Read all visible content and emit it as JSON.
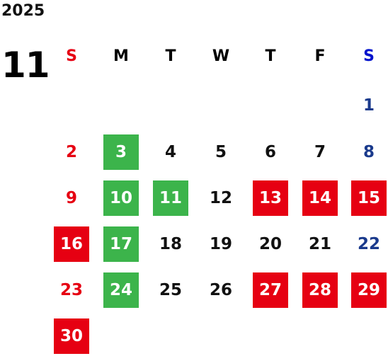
{
  "year": "2025",
  "month": "11",
  "weekdays": [
    "S",
    "M",
    "T",
    "W",
    "T",
    "F",
    "S"
  ],
  "colors": {
    "sunday": "#e60012",
    "saturday": "#1a3a8c",
    "weekday": "#111111",
    "holiday_fill": "#e60012",
    "event_fill": "#3cb44b",
    "on_fill_text": "#ffffff"
  },
  "legend_meaning_not_shown": true,
  "days": [
    {
      "day": "1",
      "col": 6,
      "row": 0,
      "mark": "none"
    },
    {
      "day": "2",
      "col": 0,
      "row": 1,
      "mark": "none"
    },
    {
      "day": "3",
      "col": 1,
      "row": 1,
      "mark": "green"
    },
    {
      "day": "4",
      "col": 2,
      "row": 1,
      "mark": "none"
    },
    {
      "day": "5",
      "col": 3,
      "row": 1,
      "mark": "none"
    },
    {
      "day": "6",
      "col": 4,
      "row": 1,
      "mark": "none"
    },
    {
      "day": "7",
      "col": 5,
      "row": 1,
      "mark": "none"
    },
    {
      "day": "8",
      "col": 6,
      "row": 1,
      "mark": "none"
    },
    {
      "day": "9",
      "col": 0,
      "row": 2,
      "mark": "none"
    },
    {
      "day": "10",
      "col": 1,
      "row": 2,
      "mark": "green"
    },
    {
      "day": "11",
      "col": 2,
      "row": 2,
      "mark": "green"
    },
    {
      "day": "12",
      "col": 3,
      "row": 2,
      "mark": "none"
    },
    {
      "day": "13",
      "col": 4,
      "row": 2,
      "mark": "red"
    },
    {
      "day": "14",
      "col": 5,
      "row": 2,
      "mark": "red"
    },
    {
      "day": "15",
      "col": 6,
      "row": 2,
      "mark": "red"
    },
    {
      "day": "16",
      "col": 0,
      "row": 3,
      "mark": "red"
    },
    {
      "day": "17",
      "col": 1,
      "row": 3,
      "mark": "green"
    },
    {
      "day": "18",
      "col": 2,
      "row": 3,
      "mark": "none"
    },
    {
      "day": "19",
      "col": 3,
      "row": 3,
      "mark": "none"
    },
    {
      "day": "20",
      "col": 4,
      "row": 3,
      "mark": "none"
    },
    {
      "day": "21",
      "col": 5,
      "row": 3,
      "mark": "none"
    },
    {
      "day": "22",
      "col": 6,
      "row": 3,
      "mark": "none"
    },
    {
      "day": "23",
      "col": 0,
      "row": 4,
      "mark": "none"
    },
    {
      "day": "24",
      "col": 1,
      "row": 4,
      "mark": "green"
    },
    {
      "day": "25",
      "col": 2,
      "row": 4,
      "mark": "none"
    },
    {
      "day": "26",
      "col": 3,
      "row": 4,
      "mark": "none"
    },
    {
      "day": "27",
      "col": 4,
      "row": 4,
      "mark": "red"
    },
    {
      "day": "28",
      "col": 5,
      "row": 4,
      "mark": "red"
    },
    {
      "day": "29",
      "col": 6,
      "row": 4,
      "mark": "red"
    },
    {
      "day": "30",
      "col": 0,
      "row": 5,
      "mark": "red"
    }
  ]
}
